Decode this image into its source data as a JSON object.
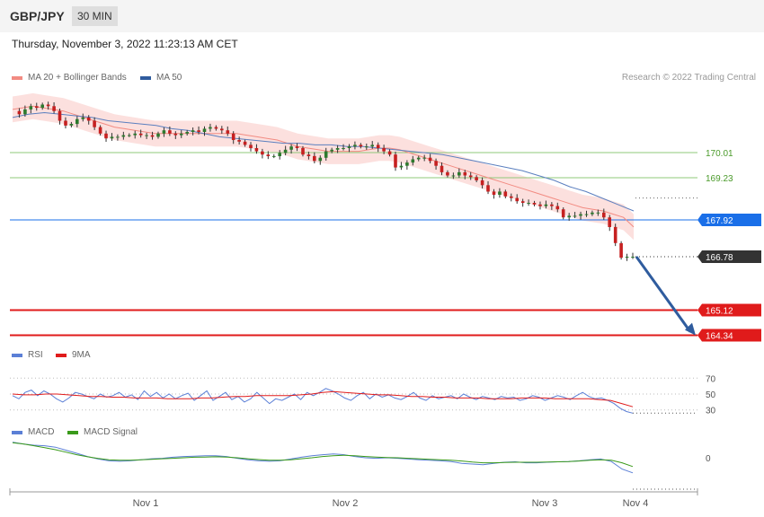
{
  "header": {
    "symbol": "GBP/JPY",
    "timeframe": "30 MIN"
  },
  "date_text": "Thursday, November 3, 2022 11:23:13 AM CET",
  "legend_main": [
    {
      "label": "MA 20 + Bollinger Bands",
      "color": "#f28b82"
    },
    {
      "label": "MA 50",
      "color": "#2f5c9e"
    }
  ],
  "copyright": "Research © 2022 Trading Central",
  "legend_rsi": [
    {
      "label": "RSI",
      "color": "#5b7fd6"
    },
    {
      "label": "9MA",
      "color": "#e01b1b"
    }
  ],
  "legend_macd": [
    {
      "label": "MACD",
      "color": "#5b7fd6"
    },
    {
      "label": "MACD Signal",
      "color": "#3a9a1a"
    }
  ],
  "chart_data": [
    {
      "type": "candlestick",
      "x_labels": [
        "Nov 1",
        "Nov 2",
        "Nov 3",
        "Nov 4"
      ],
      "ylim": [
        164.0,
        171.5
      ],
      "levels": [
        {
          "value": 170.01,
          "label": "170.01",
          "kind": "resistance",
          "color": "#8fc97a"
        },
        {
          "value": 169.23,
          "label": "169.23",
          "kind": "resistance",
          "color": "#8fc97a"
        },
        {
          "value": 167.92,
          "label": "167.92",
          "kind": "pivot",
          "color": "#1a6fe8"
        },
        {
          "value": 166.78,
          "label": "166.78",
          "kind": "last",
          "color": "#333333"
        },
        {
          "value": 165.12,
          "label": "165.12",
          "kind": "target",
          "color": "#e01b1b"
        },
        {
          "value": 164.34,
          "label": "164.34",
          "kind": "target",
          "color": "#e01b1b"
        }
      ],
      "close_path": [
        171.3,
        171.2,
        171.35,
        171.45,
        171.4,
        171.5,
        171.45,
        171.3,
        171.0,
        170.85,
        170.9,
        171.05,
        171.1,
        171.0,
        170.8,
        170.6,
        170.45,
        170.5,
        170.5,
        170.55,
        170.55,
        170.6,
        170.55,
        170.55,
        170.5,
        170.6,
        170.7,
        170.6,
        170.55,
        170.6,
        170.65,
        170.7,
        170.65,
        170.75,
        170.8,
        170.75,
        170.7,
        170.6,
        170.4,
        170.35,
        170.25,
        170.15,
        170.05,
        169.95,
        169.9,
        169.9,
        170.0,
        170.1,
        170.2,
        170.15,
        169.95,
        169.9,
        169.75,
        169.85,
        170.05,
        170.1,
        170.15,
        170.15,
        170.2,
        170.25,
        170.2,
        170.2,
        170.25,
        170.15,
        170.05,
        169.95,
        169.55,
        169.6,
        169.7,
        169.8,
        169.85,
        169.85,
        169.75,
        169.6,
        169.4,
        169.3,
        169.3,
        169.4,
        169.3,
        169.25,
        169.15,
        169.0,
        168.8,
        168.7,
        168.8,
        168.65,
        168.6,
        168.5,
        168.45,
        168.45,
        168.4,
        168.35,
        168.4,
        168.35,
        168.25,
        168.0,
        168.05,
        168.05,
        168.1,
        168.1,
        168.15,
        168.15,
        168.0,
        167.7,
        167.2,
        166.75,
        166.78,
        166.78
      ],
      "ma20": [
        171.35,
        171.4,
        171.45,
        171.4,
        171.35,
        171.3,
        171.2,
        171.1,
        171.0,
        170.9,
        170.8,
        170.75,
        170.7,
        170.65,
        170.6,
        170.6,
        170.6,
        170.6,
        170.6,
        170.6,
        170.6,
        170.6,
        170.6,
        170.55,
        170.5,
        170.45,
        170.4,
        170.3,
        170.2,
        170.15,
        170.1,
        170.05,
        170.05,
        170.05,
        170.05,
        170.1,
        170.15,
        170.15,
        170.1,
        170.0,
        169.9,
        169.8,
        169.7,
        169.6,
        169.5,
        169.4,
        169.3,
        169.2,
        169.1,
        169.0,
        168.9,
        168.8,
        168.7,
        168.6,
        168.5,
        168.4,
        168.3,
        168.25,
        168.2,
        168.1,
        168.0,
        167.7
      ],
      "ma50": [
        171.1,
        171.2,
        171.25,
        171.2,
        171.15,
        171.1,
        171.0,
        170.95,
        170.9,
        170.85,
        170.75,
        170.7,
        170.6,
        170.5,
        170.45,
        170.4,
        170.35,
        170.3,
        170.3,
        170.25,
        170.25,
        170.2,
        170.2,
        170.15,
        170.1,
        170.05,
        170.0,
        169.95,
        169.85,
        169.75,
        169.65,
        169.55,
        169.45,
        169.3,
        169.15,
        168.95,
        168.8,
        168.6,
        168.4,
        168.2
      ],
      "bb_width": 0.4
    },
    {
      "type": "line",
      "name": "RSI",
      "y_labels": [
        "70",
        "50",
        "30"
      ],
      "ylim": [
        15,
        85
      ],
      "rsi": [
        48,
        44,
        52,
        55,
        48,
        54,
        50,
        44,
        40,
        45,
        52,
        50,
        47,
        44,
        50,
        46,
        48,
        52,
        46,
        49,
        43,
        54,
        47,
        52,
        45,
        50,
        44,
        48,
        51,
        42,
        48,
        54,
        42,
        47,
        52,
        43,
        47,
        40,
        44,
        52,
        45,
        38,
        44,
        42,
        46,
        50,
        43,
        52,
        48,
        52,
        57,
        54,
        50,
        45,
        42,
        48,
        52,
        44,
        50,
        46,
        49,
        45,
        43,
        47,
        52,
        45,
        42,
        48,
        44,
        46,
        48,
        44,
        50,
        46,
        43,
        47,
        45,
        43,
        47,
        45,
        46,
        42,
        44,
        48,
        46,
        42,
        45,
        48,
        46,
        43,
        48,
        52,
        47,
        44,
        45,
        42,
        38,
        32,
        28,
        26
      ],
      "ma9": [
        50,
        49,
        49,
        50,
        50,
        49,
        48,
        47,
        47,
        46,
        46,
        45,
        45,
        45,
        44,
        44,
        44,
        45,
        45,
        46,
        47,
        47,
        48,
        48,
        48,
        48,
        49,
        50,
        52,
        53,
        52,
        51,
        50,
        49,
        49,
        48,
        47,
        47,
        46,
        46,
        45,
        45,
        45,
        44,
        44,
        44,
        45,
        45,
        45,
        44,
        44,
        44,
        44,
        43,
        42,
        38,
        34
      ]
    },
    {
      "type": "line",
      "name": "MACD",
      "y_labels": [
        "0"
      ],
      "macd": [
        0.62,
        0.55,
        0.5,
        0.48,
        0.42,
        0.3,
        0.18,
        0.05,
        -0.05,
        -0.12,
        -0.14,
        -0.12,
        -0.08,
        -0.04,
        -0.02,
        0.02,
        0.05,
        0.06,
        0.08,
        0.08,
        0.05,
        -0.02,
        -0.08,
        -0.12,
        -0.14,
        -0.12,
        -0.05,
        0.02,
        0.08,
        0.12,
        0.15,
        0.12,
        0.05,
        0.0,
        -0.02,
        0.0,
        -0.02,
        -0.05,
        -0.08,
        -0.1,
        -0.12,
        -0.15,
        -0.22,
        -0.25,
        -0.28,
        -0.22,
        -0.18,
        -0.16,
        -0.2,
        -0.2,
        -0.18,
        -0.16,
        -0.15,
        -0.12,
        -0.08,
        -0.05,
        -0.15,
        -0.45,
        -0.6
      ],
      "signal": [
        0.6,
        0.55,
        0.48,
        0.4,
        0.32,
        0.22,
        0.12,
        0.04,
        -0.03,
        -0.08,
        -0.1,
        -0.1,
        -0.08,
        -0.06,
        -0.04,
        -0.02,
        0.0,
        0.02,
        0.03,
        0.04,
        0.03,
        0.0,
        -0.04,
        -0.07,
        -0.1,
        -0.1,
        -0.08,
        -0.04,
        0.0,
        0.05,
        0.08,
        0.1,
        0.08,
        0.05,
        0.03,
        0.01,
        0.0,
        -0.02,
        -0.04,
        -0.06,
        -0.08,
        -0.1,
        -0.13,
        -0.17,
        -0.2,
        -0.2,
        -0.19,
        -0.18,
        -0.18,
        -0.18,
        -0.17,
        -0.16,
        -0.15,
        -0.13,
        -0.1,
        -0.08,
        -0.1,
        -0.2,
        -0.35
      ]
    }
  ]
}
